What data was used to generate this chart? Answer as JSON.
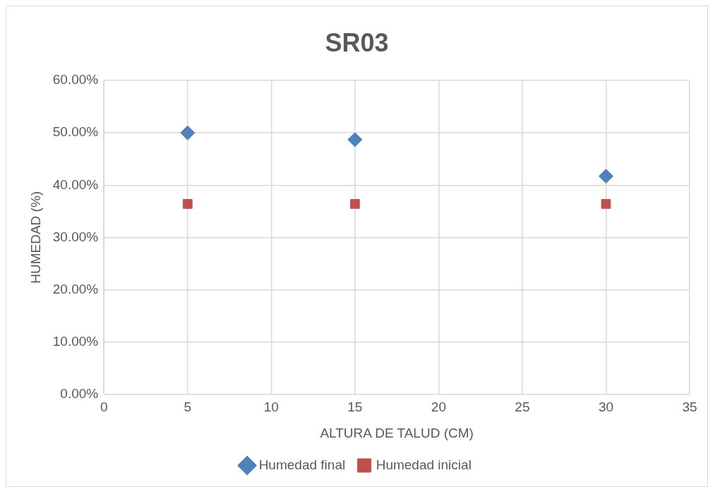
{
  "chart_data": {
    "type": "scatter",
    "title": "SR03",
    "xlabel": "ALTURA DE TALUD (CM)",
    "ylabel": "HUMEDAD (%)",
    "xlim": [
      0,
      35
    ],
    "xticks": [
      0,
      5,
      10,
      15,
      20,
      25,
      30,
      35
    ],
    "ylim": [
      0,
      60
    ],
    "yticks": [
      {
        "value": 0,
        "label": "0.00%"
      },
      {
        "value": 10,
        "label": "10.00%"
      },
      {
        "value": 20,
        "label": "20.00%"
      },
      {
        "value": 30,
        "label": "30.00%"
      },
      {
        "value": 40,
        "label": "40.00%"
      },
      {
        "value": 50,
        "label": "50.00%"
      },
      {
        "value": 60,
        "label": "60.00%"
      }
    ],
    "grid": true,
    "legend": "bottom",
    "series": [
      {
        "name": "Humedad final",
        "color": "#4f81bd",
        "marker": "diamond",
        "x": [
          5,
          15,
          30
        ],
        "values": [
          50,
          48.7,
          41.7
        ]
      },
      {
        "name": "Humedad inicial",
        "color": "#c0504d",
        "marker": "square",
        "x": [
          5,
          15,
          30
        ],
        "values": [
          36.4,
          36.4,
          36.4
        ]
      }
    ]
  }
}
